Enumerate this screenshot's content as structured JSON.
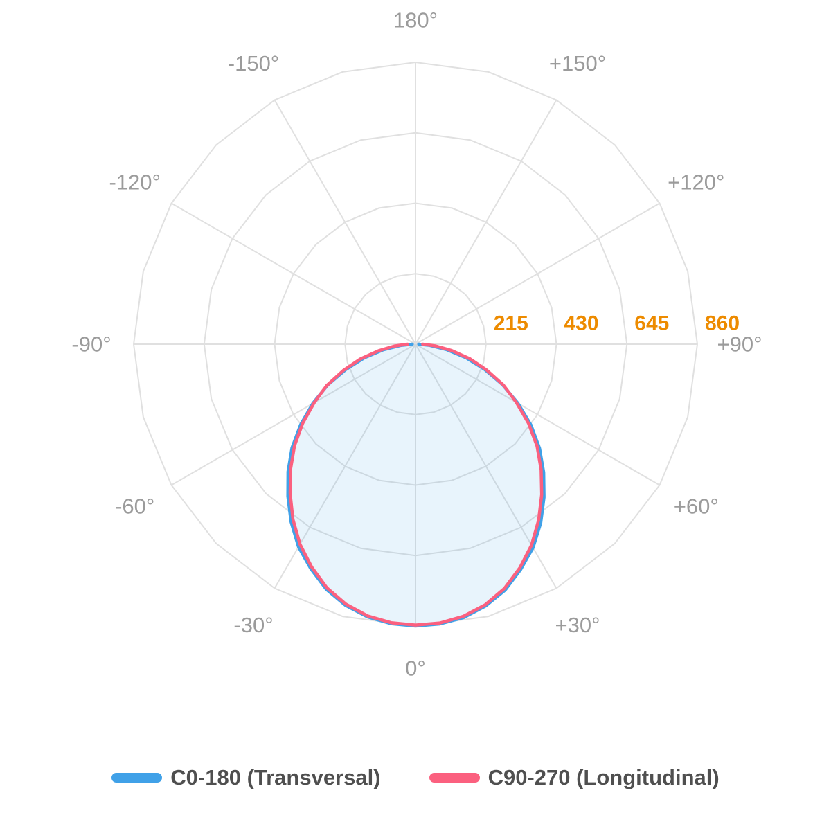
{
  "chart_data": {
    "type": "line",
    "subtype": "polar-photometric",
    "title": "",
    "orientation": "0-degrees-at-bottom",
    "grid": {
      "color": "#e0e0e0",
      "rings": 4,
      "spoke_step_deg": 30,
      "ring_shape": "polygon-15deg"
    },
    "angle_labels": [
      {
        "angle": 180,
        "label": "180°"
      },
      {
        "angle": -150,
        "label": "-150°"
      },
      {
        "angle": 150,
        "label": "+150°"
      },
      {
        "angle": -120,
        "label": "-120°"
      },
      {
        "angle": 120,
        "label": "+120°"
      },
      {
        "angle": -90,
        "label": "-90°"
      },
      {
        "angle": 90,
        "label": "+90°"
      },
      {
        "angle": -60,
        "label": "-60°"
      },
      {
        "angle": 60,
        "label": "+60°"
      },
      {
        "angle": -30,
        "label": "-30°"
      },
      {
        "angle": 30,
        "label": "+30°"
      },
      {
        "angle": 0,
        "label": "0°"
      }
    ],
    "radial_axis": {
      "max": 860,
      "ticks": [
        215,
        430,
        645,
        860
      ],
      "tick_labels": [
        "215",
        "430",
        "645",
        "860"
      ],
      "label_color": "#ed8b00"
    },
    "angles_deg": [
      -90,
      -85,
      -80,
      -75,
      -70,
      -65,
      -60,
      -55,
      -50,
      -45,
      -40,
      -35,
      -30,
      -25,
      -20,
      -15,
      -10,
      -5,
      0,
      5,
      10,
      15,
      20,
      25,
      30,
      35,
      40,
      45,
      50,
      55,
      60,
      65,
      70,
      75,
      80,
      85,
      90
    ],
    "series": [
      {
        "name": "C0-180 (Transversal)",
        "color": "#40a1e8",
        "fill": "rgba(64,161,232,0.12)",
        "values": [
          10,
          46,
          100,
          162,
          226,
          296,
          362,
          428,
          492,
          550,
          606,
          662,
          714,
          756,
          796,
          825,
          845,
          856,
          860,
          857,
          847,
          827,
          799,
          759,
          717,
          666,
          610,
          553,
          494,
          430,
          361,
          293,
          224,
          159,
          97,
          44,
          10
        ]
      },
      {
        "name": "C90-270 (Longitudinal)",
        "color": "#fb607f",
        "fill": "none",
        "values": [
          24,
          64,
          114,
          174,
          234,
          299,
          357,
          420,
          482,
          539,
          595,
          652,
          705,
          750,
          791,
          821,
          842,
          853,
          857,
          854,
          843,
          823,
          793,
          753,
          708,
          655,
          599,
          542,
          484,
          421,
          355,
          296,
          231,
          171,
          112,
          61,
          22
        ]
      }
    ]
  },
  "legend": {
    "items": [
      {
        "label": "C0-180 (Transversal)",
        "color": "#40a1e8"
      },
      {
        "label": "C90-270 (Longitudinal)",
        "color": "#fb607f"
      }
    ]
  },
  "colors": {
    "background": "#ffffff",
    "grid": "#e0e0e0",
    "angle_label": "#9b9b9b",
    "radius_label": "#ed8b00",
    "legend_text": "#4f4f4f"
  }
}
